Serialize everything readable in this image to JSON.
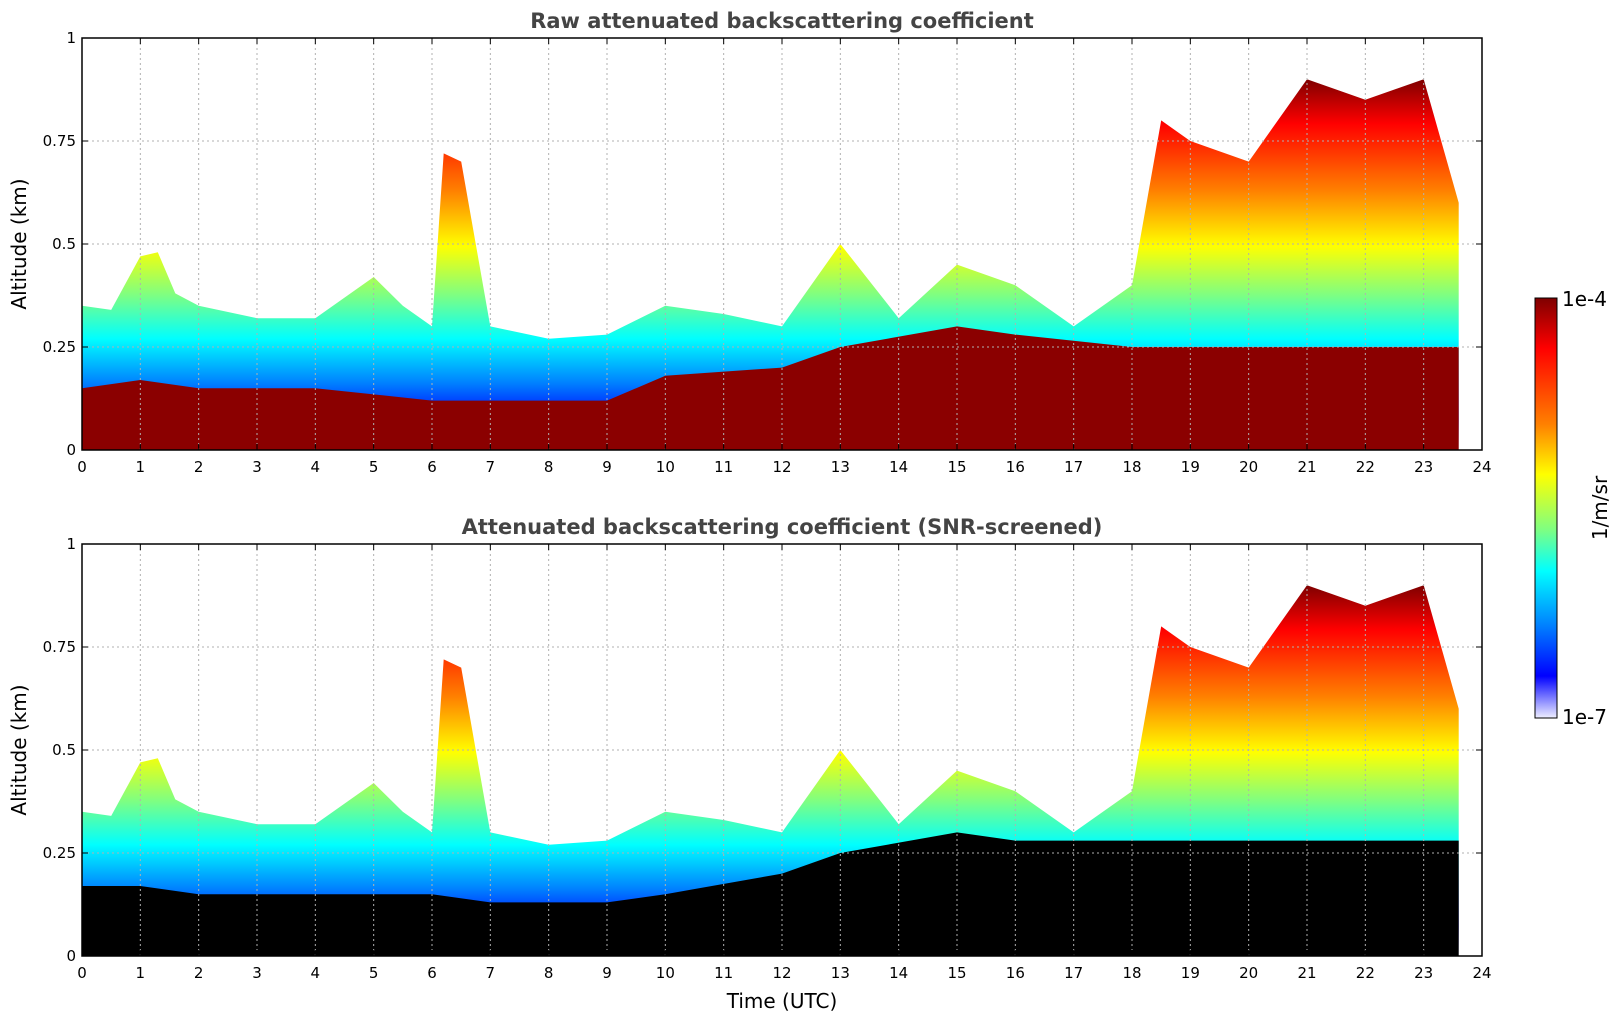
{
  "chart_data": [
    {
      "type": "heatmap",
      "title": "Raw attenuated backscattering coefficient",
      "xlabel": "",
      "ylabel": "Altitude (km)",
      "xlim": [
        0,
        24
      ],
      "ylim": [
        0,
        1
      ],
      "x_ticks": [
        "0",
        "1",
        "2",
        "3",
        "4",
        "5",
        "6",
        "7",
        "8",
        "9",
        "10",
        "11",
        "12",
        "13",
        "14",
        "15",
        "16",
        "17",
        "18",
        "19",
        "20",
        "21",
        "22",
        "23",
        "24"
      ],
      "y_ticks": [
        "0",
        "0.25",
        "0.5",
        "0.75",
        "1"
      ],
      "grid": true,
      "data_end_time": 23.6,
      "layer_top_km": {
        "time": [
          0,
          0.5,
          1.0,
          1.3,
          1.6,
          2.0,
          3.0,
          4.0,
          5.0,
          5.5,
          6.0,
          6.2,
          6.5,
          7.0,
          8.0,
          9.0,
          10.0,
          11.0,
          12.0,
          13.0,
          14.0,
          15.0,
          16.0,
          17.0,
          18.0,
          18.5,
          19.0,
          20.0,
          21.0,
          22.0,
          23.0,
          23.6
        ],
        "altitude": [
          0.35,
          0.34,
          0.47,
          0.48,
          0.38,
          0.35,
          0.32,
          0.32,
          0.42,
          0.35,
          0.3,
          0.72,
          0.7,
          0.3,
          0.27,
          0.28,
          0.35,
          0.33,
          0.3,
          0.5,
          0.32,
          0.45,
          0.4,
          0.3,
          0.4,
          0.8,
          0.75,
          0.7,
          0.9,
          0.85,
          0.9,
          0.6
        ]
      },
      "saturated_top_km": {
        "time": [
          0,
          1.0,
          2.0,
          4.0,
          6.0,
          7.0,
          9.0,
          10.0,
          12.0,
          13.0,
          15.0,
          16.0,
          18.0,
          23.6
        ],
        "altitude": [
          0.15,
          0.17,
          0.15,
          0.15,
          0.12,
          0.12,
          0.12,
          0.18,
          0.2,
          0.25,
          0.3,
          0.28,
          0.25,
          0.25
        ]
      }
    },
    {
      "type": "heatmap",
      "title": "Attenuated backscattering coefficient (SNR-screened)",
      "xlabel": "Time (UTC)",
      "ylabel": "Altitude (km)",
      "xlim": [
        0,
        24
      ],
      "ylim": [
        0,
        1
      ],
      "x_ticks": [
        "0",
        "1",
        "2",
        "3",
        "4",
        "5",
        "6",
        "7",
        "8",
        "9",
        "10",
        "11",
        "12",
        "13",
        "14",
        "15",
        "16",
        "17",
        "18",
        "19",
        "20",
        "21",
        "22",
        "23",
        "24"
      ],
      "y_ticks": [
        "0",
        "0.25",
        "0.5",
        "0.75",
        "1"
      ],
      "grid": true,
      "data_end_time": 23.6,
      "screened_top_km": {
        "time": [
          0,
          1.0,
          2.0,
          4.0,
          6.0,
          7.0,
          9.0,
          10.0,
          12.0,
          13.0,
          15.0,
          16.0,
          18.0,
          23.6
        ],
        "altitude": [
          0.17,
          0.17,
          0.15,
          0.15,
          0.15,
          0.13,
          0.13,
          0.15,
          0.2,
          0.25,
          0.3,
          0.28,
          0.28,
          0.28
        ]
      }
    }
  ],
  "colorbar": {
    "label": "1/m/sr",
    "max_label": "1e-4",
    "min_label": "1e-7",
    "colors": [
      "#7f0000",
      "#ff0000",
      "#ff8000",
      "#ffff00",
      "#80ff80",
      "#00ffff",
      "#0080ff",
      "#0000ff",
      "#eeeeff"
    ]
  }
}
